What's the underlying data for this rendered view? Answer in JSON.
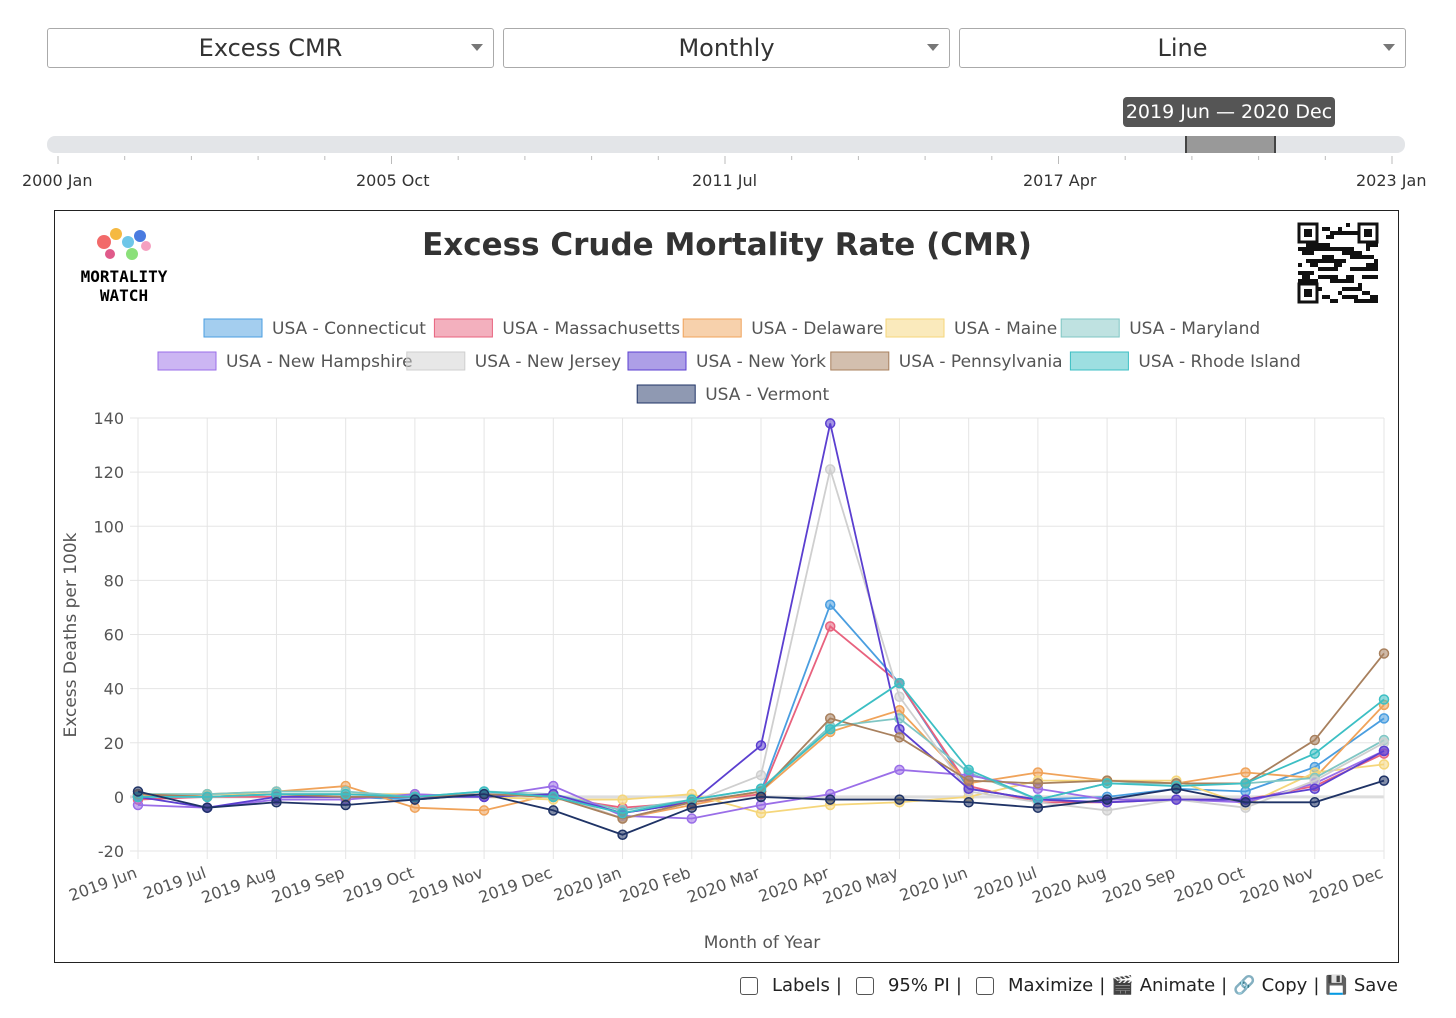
{
  "controls": {
    "metric": "Excess CMR",
    "period": "Monthly",
    "chart_type": "Line"
  },
  "range": {
    "tooltip": "2019 Jun — 2020 Dec",
    "ticks": [
      "2000 Jan",
      "2005 Oct",
      "2011 Jul",
      "2017 Apr",
      "2023 Jan"
    ]
  },
  "logo": {
    "line1": "MORTALITY",
    "line2": "WATCH"
  },
  "footer": {
    "labels": "Labels",
    "pi": "95% PI",
    "maximize": "Maximize",
    "animate": "Animate",
    "copy": "Copy",
    "save": "Save",
    "sep": "|"
  },
  "chart_data": {
    "type": "line",
    "title": "Excess Crude Mortality Rate (CMR)",
    "xlabel": "Month of Year",
    "ylabel": "Excess Deaths per 100k",
    "ylim": [
      -20,
      140
    ],
    "yticks": [
      -20,
      0,
      20,
      40,
      60,
      80,
      100,
      120,
      140
    ],
    "legend_position": "top",
    "grid": true,
    "categories": [
      "2019 Jun",
      "2019 Jul",
      "2019 Aug",
      "2019 Sep",
      "2019 Oct",
      "2019 Nov",
      "2019 Dec",
      "2020 Jan",
      "2020 Feb",
      "2020 Mar",
      "2020 Apr",
      "2020 May",
      "2020 Jun",
      "2020 Jul",
      "2020 Aug",
      "2020 Sep",
      "2020 Oct",
      "2020 Nov",
      "2020 Dec"
    ],
    "series": [
      {
        "name": "USA - Connecticut",
        "color": "#4a9ee0",
        "values": [
          0,
          0,
          1,
          0,
          -1,
          1,
          1,
          -6,
          -2,
          2,
          71,
          42,
          3,
          -1,
          0,
          3,
          2,
          11,
          29
        ]
      },
      {
        "name": "USA - Massachusetts",
        "color": "#e8627e",
        "values": [
          -1,
          0,
          0,
          0,
          0,
          1,
          0,
          -4,
          -2,
          1,
          63,
          42,
          4,
          -2,
          -2,
          -1,
          -1,
          4,
          16
        ]
      },
      {
        "name": "USA - Delaware",
        "color": "#f0a35a",
        "values": [
          0,
          1,
          2,
          4,
          -4,
          -5,
          1,
          -8,
          -3,
          2,
          24,
          32,
          5,
          9,
          6,
          5,
          9,
          7,
          34
        ]
      },
      {
        "name": "USA - Maine",
        "color": "#f5d67a",
        "values": [
          1,
          1,
          1,
          1,
          1,
          0,
          -1,
          -1,
          1,
          -6,
          -3,
          -2,
          0,
          6,
          6,
          6,
          -3,
          9,
          12
        ]
      },
      {
        "name": "USA - Maryland",
        "color": "#7fc6c4",
        "values": [
          1,
          1,
          2,
          2,
          0,
          2,
          1,
          -5,
          -1,
          3,
          26,
          29,
          9,
          -1,
          5,
          5,
          5,
          7,
          21
        ]
      },
      {
        "name": "USA - New Hampshire",
        "color": "#9a6ee8",
        "values": [
          -3,
          -4,
          -1,
          -1,
          1,
          0,
          4,
          -7,
          -8,
          -3,
          1,
          10,
          8,
          3,
          -1,
          -1,
          -2,
          5,
          17
        ]
      },
      {
        "name": "USA - New Jersey",
        "color": "#cfcfcf",
        "values": [
          0,
          0,
          1,
          1,
          0,
          1,
          1,
          -8,
          -2,
          8,
          121,
          37,
          2,
          -2,
          -5,
          -1,
          -4,
          6,
          20
        ]
      },
      {
        "name": "USA - New York",
        "color": "#5b3fd0",
        "values": [
          0,
          -4,
          0,
          0,
          0,
          0,
          1,
          -6,
          -2,
          19,
          138,
          25,
          3,
          -1,
          -2,
          -1,
          -1,
          3,
          17
        ]
      },
      {
        "name": "USA - Pennsylvania",
        "color": "#a8805e",
        "values": [
          1,
          0,
          1,
          0,
          0,
          1,
          0,
          -8,
          -2,
          2,
          29,
          22,
          6,
          5,
          6,
          5,
          5,
          21,
          53
        ]
      },
      {
        "name": "USA - Rhode Island",
        "color": "#3cbfc4",
        "values": [
          0,
          0,
          1,
          1,
          0,
          2,
          0,
          -6,
          -1,
          3,
          25,
          42,
          10,
          -1,
          5,
          4,
          5,
          16,
          36
        ]
      },
      {
        "name": "USA - Vermont",
        "color": "#1f3366",
        "values": [
          2,
          -4,
          -2,
          -3,
          -1,
          1,
          -5,
          -14,
          -4,
          0,
          -1,
          -1,
          -2,
          -4,
          -1,
          3,
          -2,
          -2,
          6
        ]
      }
    ]
  }
}
